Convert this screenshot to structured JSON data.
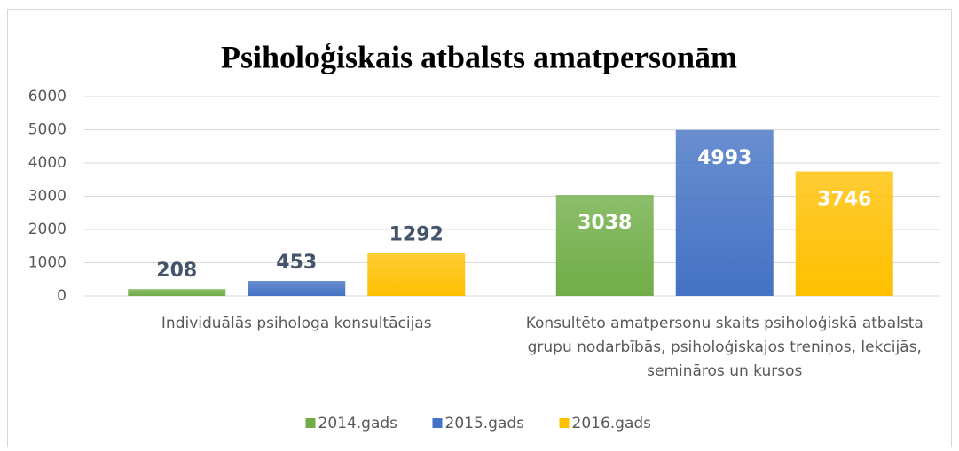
{
  "chart_data": {
    "type": "bar",
    "title": "Psiholoģiskais atbalsts amatpersonām",
    "categories": [
      "Individuālās psihologa konsultācijas",
      "Konsultēto amatpersonu skaits psiholoģiskā atbalsta grupu nodarbībās, psiholoģiskajos treniņos, lekcijās, semināros un kursos"
    ],
    "series": [
      {
        "name": "2014.gads",
        "color": "#70ad47",
        "values": [
          208,
          3038
        ]
      },
      {
        "name": "2015.gads",
        "color": "#4472c4",
        "values": [
          453,
          4993
        ]
      },
      {
        "name": "2016.gads",
        "color": "#ffc000",
        "values": [
          1292,
          3746
        ]
      }
    ],
    "ylim": [
      0,
      6000
    ],
    "yticks": [
      0,
      1000,
      2000,
      3000,
      4000,
      5000,
      6000
    ],
    "grid": true,
    "legend": "bottom"
  }
}
